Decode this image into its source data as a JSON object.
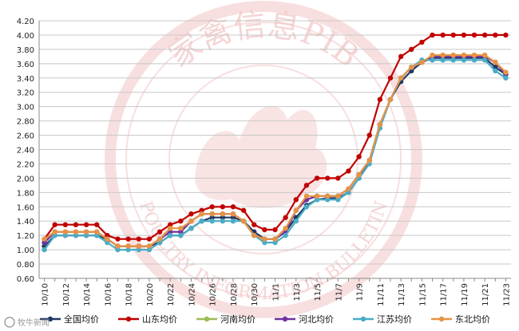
{
  "chart_data": {
    "type": "line",
    "title": "",
    "xlabel": "",
    "ylabel": "",
    "ylim": [
      0.6,
      4.2
    ],
    "yticks": [
      "0.60",
      "0.80",
      "1.00",
      "1.20",
      "1.40",
      "1.60",
      "1.80",
      "2.00",
      "2.20",
      "2.40",
      "2.60",
      "2.80",
      "3.00",
      "3.20",
      "3.40",
      "3.60",
      "3.80",
      "4.00",
      "4.20"
    ],
    "grid": true,
    "legend_position": "bottom",
    "x": [
      "10/10",
      "10/11",
      "10/12",
      "10/13",
      "10/14",
      "10/15",
      "10/16",
      "10/17",
      "10/18",
      "10/19",
      "10/20",
      "10/21",
      "10/22",
      "10/23",
      "10/24",
      "10/25",
      "10/26",
      "10/27",
      "10/28",
      "10/29",
      "10/30",
      "10/31",
      "11/1",
      "11/2",
      "11/3",
      "11/4",
      "11/5",
      "11/6",
      "11/7",
      "11/8",
      "11/9",
      "11/10",
      "11/11",
      "11/12",
      "11/13",
      "11/14",
      "11/15",
      "11/16",
      "11/17",
      "11/18",
      "11/19",
      "11/20",
      "11/21",
      "11/22",
      "11/23"
    ],
    "xtick_labels": [
      "10/10",
      "10/12",
      "10/14",
      "10/16",
      "10/18",
      "10/20",
      "10/22",
      "10/24",
      "10/26",
      "10/28",
      "10/30",
      "11/1",
      "11/3",
      "11/5",
      "11/7",
      "11/9",
      "11/11",
      "11/13",
      "11/15",
      "11/17",
      "11/19",
      "11/21",
      "11/23"
    ],
    "series": [
      {
        "name": "全国均价",
        "color": "#1f3864",
        "values": [
          1.05,
          1.2,
          1.2,
          1.2,
          1.2,
          1.2,
          1.15,
          1.05,
          1.05,
          1.05,
          1.05,
          1.1,
          1.2,
          1.2,
          1.3,
          1.4,
          1.45,
          1.45,
          1.45,
          1.4,
          1.25,
          1.15,
          1.15,
          1.25,
          1.45,
          1.62,
          1.7,
          1.72,
          1.72,
          1.8,
          2.0,
          2.25,
          2.75,
          3.1,
          3.35,
          3.5,
          3.62,
          3.68,
          3.68,
          3.68,
          3.68,
          3.68,
          3.68,
          3.55,
          3.45
        ]
      },
      {
        "name": "山东均价",
        "color": "#c00000",
        "values": [
          1.15,
          1.35,
          1.35,
          1.35,
          1.35,
          1.35,
          1.2,
          1.15,
          1.15,
          1.15,
          1.15,
          1.25,
          1.35,
          1.4,
          1.5,
          1.55,
          1.6,
          1.6,
          1.6,
          1.55,
          1.35,
          1.28,
          1.28,
          1.45,
          1.7,
          1.9,
          2.0,
          2.0,
          2.0,
          2.1,
          2.3,
          2.6,
          3.1,
          3.4,
          3.7,
          3.8,
          3.9,
          4.0,
          4.0,
          4.0,
          4.0,
          4.0,
          4.0,
          4.0,
          4.0
        ]
      },
      {
        "name": "河南均价",
        "color": "#9bbb59",
        "values": [
          1.1,
          1.25,
          1.25,
          1.25,
          1.25,
          1.25,
          1.15,
          1.05,
          1.05,
          1.05,
          1.05,
          1.15,
          1.25,
          1.25,
          1.4,
          1.5,
          1.5,
          1.5,
          1.5,
          1.4,
          1.2,
          1.15,
          1.15,
          1.25,
          1.55,
          1.7,
          1.75,
          1.75,
          1.75,
          1.85,
          2.05,
          2.25,
          2.75,
          3.1,
          3.4,
          3.55,
          3.62,
          3.7,
          3.7,
          3.7,
          3.7,
          3.7,
          3.7,
          3.62,
          3.45
        ]
      },
      {
        "name": "河北均价",
        "color": "#7030a0",
        "values": [
          1.1,
          1.25,
          1.25,
          1.25,
          1.25,
          1.25,
          1.15,
          1.05,
          1.05,
          1.05,
          1.05,
          1.15,
          1.25,
          1.25,
          1.4,
          1.5,
          1.5,
          1.5,
          1.5,
          1.4,
          1.2,
          1.15,
          1.15,
          1.25,
          1.55,
          1.7,
          1.75,
          1.75,
          1.75,
          1.85,
          2.05,
          2.25,
          2.75,
          3.1,
          3.4,
          3.55,
          3.62,
          3.7,
          3.7,
          3.7,
          3.7,
          3.7,
          3.7,
          3.62,
          3.45
        ]
      },
      {
        "name": "江苏均价",
        "color": "#4bacc6",
        "values": [
          1.0,
          1.2,
          1.2,
          1.2,
          1.2,
          1.2,
          1.1,
          1.0,
          1.0,
          1.0,
          1.0,
          1.1,
          1.2,
          1.2,
          1.3,
          1.4,
          1.4,
          1.4,
          1.4,
          1.4,
          1.2,
          1.1,
          1.1,
          1.2,
          1.4,
          1.6,
          1.7,
          1.7,
          1.7,
          1.8,
          2.0,
          2.2,
          2.7,
          3.1,
          3.4,
          3.55,
          3.65,
          3.65,
          3.65,
          3.65,
          3.65,
          3.65,
          3.65,
          3.5,
          3.4
        ]
      },
      {
        "name": "东北均价",
        "color": "#e59446",
        "values": [
          1.15,
          1.25,
          1.25,
          1.25,
          1.25,
          1.25,
          1.15,
          1.05,
          1.05,
          1.05,
          1.05,
          1.15,
          1.3,
          1.3,
          1.4,
          1.5,
          1.5,
          1.5,
          1.5,
          1.4,
          1.2,
          1.15,
          1.15,
          1.3,
          1.55,
          1.75,
          1.75,
          1.75,
          1.75,
          1.85,
          2.05,
          2.25,
          2.75,
          3.1,
          3.4,
          3.55,
          3.62,
          3.72,
          3.72,
          3.72,
          3.72,
          3.72,
          3.72,
          3.62,
          3.48
        ]
      }
    ]
  },
  "watermark": {
    "seal_top": "家禽信息PIB",
    "seal_bottom": "POULTRY INFORMATION BULLETIN",
    "color": "#f2b8b8"
  },
  "corner_logo": "牧牛新闻"
}
